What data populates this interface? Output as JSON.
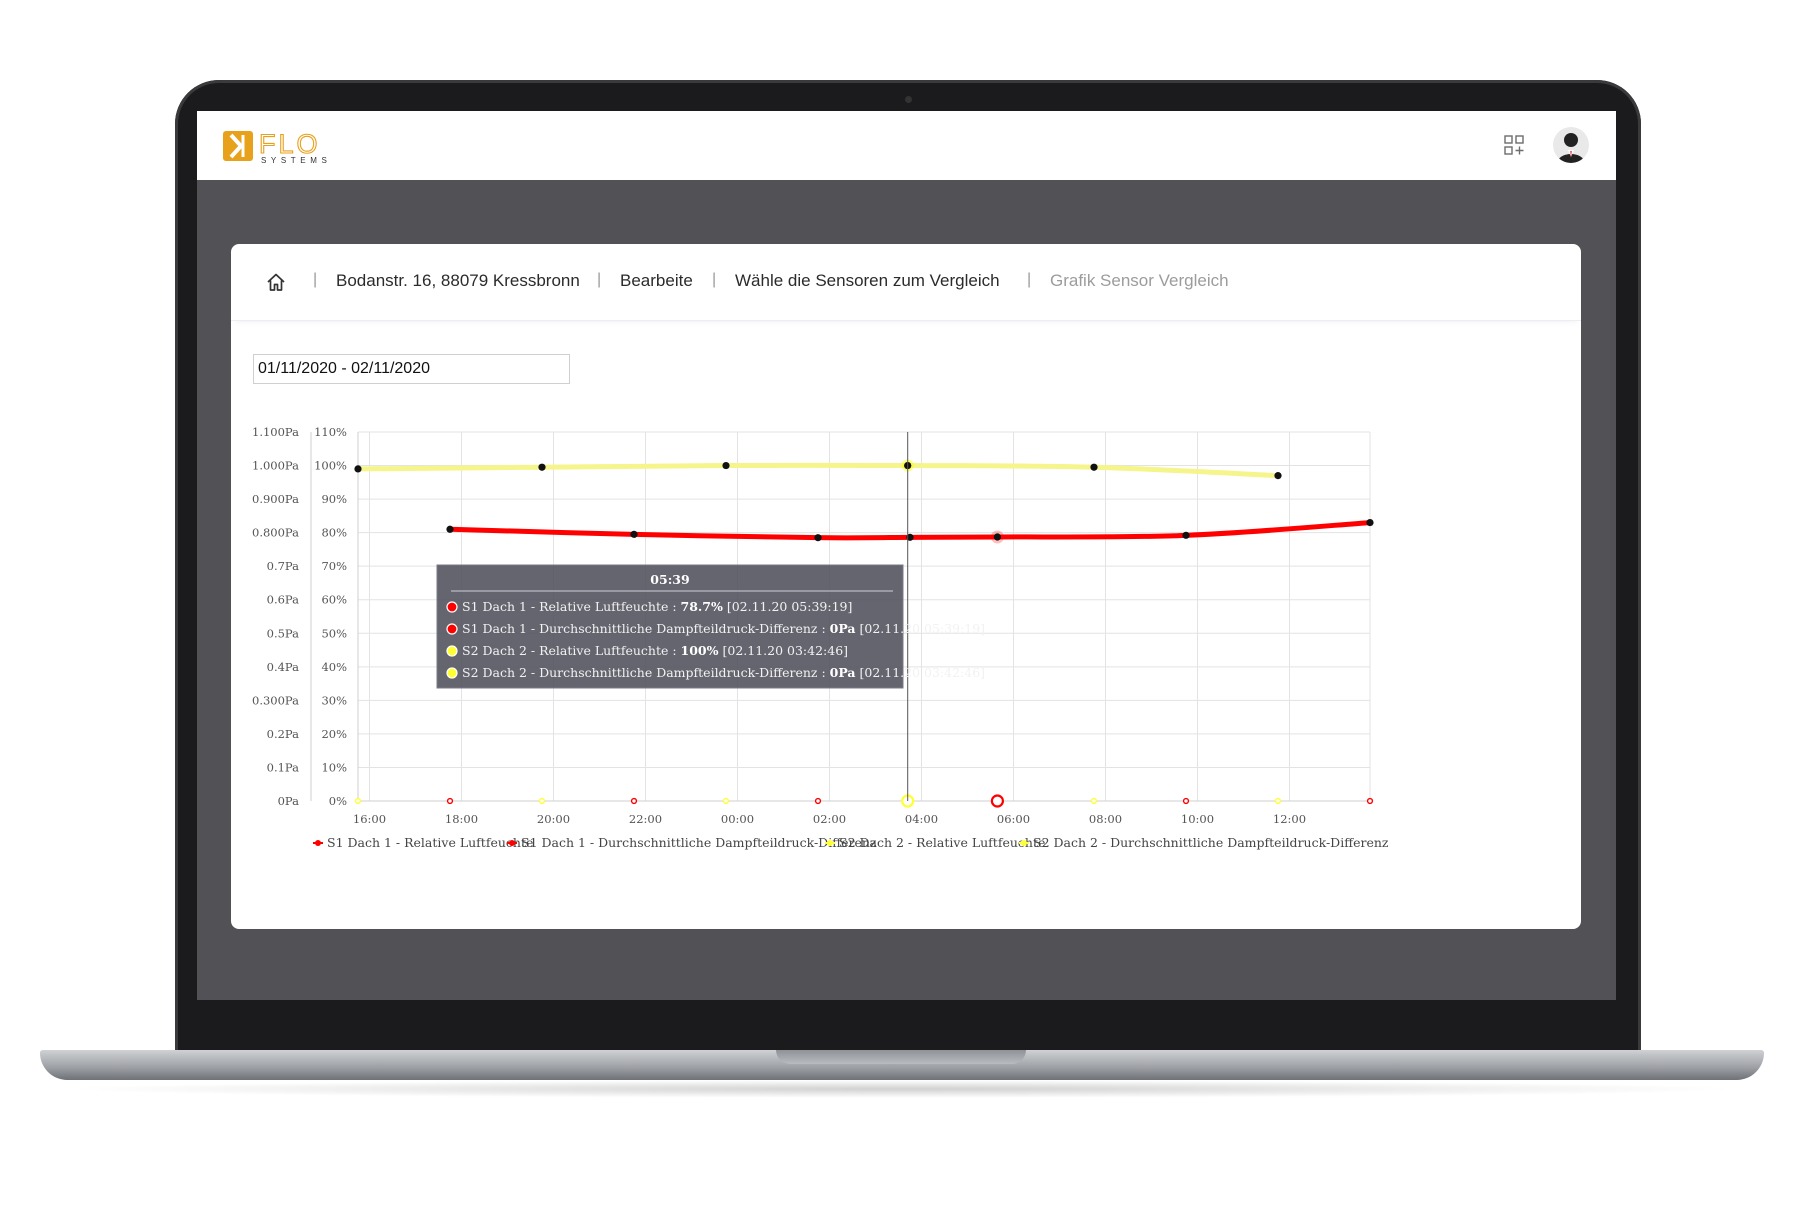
{
  "topbar": {
    "logo_text": "FLO",
    "logo_sub": "SYSTEMS",
    "apps_icon": "grid-plus-icon",
    "avatar_icon": "user-avatar-icon"
  },
  "breadcrumb": {
    "home_icon": "home-icon",
    "items": [
      {
        "label": "Bodanstr. 16, 88079 Kressbronn"
      },
      {
        "label": "Bearbeite"
      },
      {
        "label": "Wähle die Sensoren zum Vergleich"
      },
      {
        "label": "Grafik Sensor Vergleich"
      }
    ]
  },
  "date_range": {
    "value": "01/11/2020 - 02/11/2020"
  },
  "chart_data": {
    "type": "line",
    "x_ticks": [
      "16:00",
      "18:00",
      "20:00",
      "22:00",
      "00:00",
      "02:00",
      "04:00",
      "06:00",
      "08:00",
      "10:00",
      "12:00"
    ],
    "x_range": [
      "01.11.20 15:45",
      "02.11.20 13:45"
    ],
    "y_left_ticks": [
      "0Pa",
      "0.1Pa",
      "0.2Pa",
      "0.300Pa",
      "0.4Pa",
      "0.5Pa",
      "0.6Pa",
      "0.7Pa",
      "0.800Pa",
      "0.900Pa",
      "1.000Pa",
      "1.100Pa"
    ],
    "y_left_range": [
      0,
      1.1
    ],
    "y_right_ticks": [
      "0%",
      "10%",
      "20%",
      "30%",
      "40%",
      "50%",
      "60%",
      "70%",
      "80%",
      "90%",
      "100%",
      "110%"
    ],
    "y_right_range": [
      0,
      110
    ],
    "grid": true,
    "legend_position": "bottom",
    "colors": {
      "s1": "#ff0000",
      "s2": "#f5f58c",
      "s2_marker": "#ffff33",
      "marker": "#111111"
    },
    "series": [
      {
        "name": "S1 Dach 1 - Relative Luftfeuchte",
        "axis": "right",
        "color": "#ff0000",
        "points": [
          [
            "17:45",
            81
          ],
          [
            "21:45",
            79.5
          ],
          [
            "01:45",
            78.5
          ],
          [
            "03:45",
            78.6
          ],
          [
            "05:39",
            78.7
          ],
          [
            "09:45",
            79.2
          ],
          [
            "13:45",
            83
          ]
        ]
      },
      {
        "name": "S1 Dach 1 - Durchschnittliche Dampfteildruck-Differenz",
        "axis": "left",
        "color": "#ff0000",
        "points": [
          [
            "17:45",
            0
          ],
          [
            "21:45",
            0
          ],
          [
            "01:45",
            0
          ],
          [
            "05:39",
            0
          ],
          [
            "09:45",
            0
          ],
          [
            "13:45",
            0
          ]
        ]
      },
      {
        "name": "S2 Dach 2 - Relative Luftfeuchte",
        "axis": "right",
        "color": "#f5f58c",
        "points": [
          [
            "15:45",
            99
          ],
          [
            "19:45",
            99.5
          ],
          [
            "23:45",
            100
          ],
          [
            "03:42",
            100
          ],
          [
            "07:45",
            99.5
          ],
          [
            "11:45",
            97
          ]
        ]
      },
      {
        "name": "S2 Dach 2 - Durchschnittliche Dampfteildruck-Differenz",
        "axis": "left",
        "color": "#f5f58c",
        "points": [
          [
            "15:45",
            0
          ],
          [
            "19:45",
            0
          ],
          [
            "23:45",
            0
          ],
          [
            "03:42",
            0
          ],
          [
            "07:45",
            0
          ],
          [
            "11:45",
            0
          ]
        ]
      }
    ],
    "crosshair_time": "03:42",
    "tooltip": {
      "title": "05:39",
      "rows": [
        {
          "color": "#ff0000",
          "label": "S1 Dach 1 - Relative Luftfeuchte : ",
          "value": "78.7%",
          "time": " [02.11.20 05:39:19]"
        },
        {
          "color": "#ff0000",
          "label": "S1 Dach 1 - Durchschnittliche Dampfteildruck-Differenz : ",
          "value": "0Pa",
          "time": " [02.11.20 05:39:19]"
        },
        {
          "color": "#ffff33",
          "label": "S2 Dach 2 - Relative Luftfeuchte : ",
          "value": "100%",
          "time": " [02.11.20 03:42:46]"
        },
        {
          "color": "#ffff33",
          "label": "S2 Dach 2 - Durchschnittliche Dampfteildruck-Differenz : ",
          "value": "0Pa",
          "time": " [02.11.20 03:42:46]"
        }
      ]
    }
  }
}
